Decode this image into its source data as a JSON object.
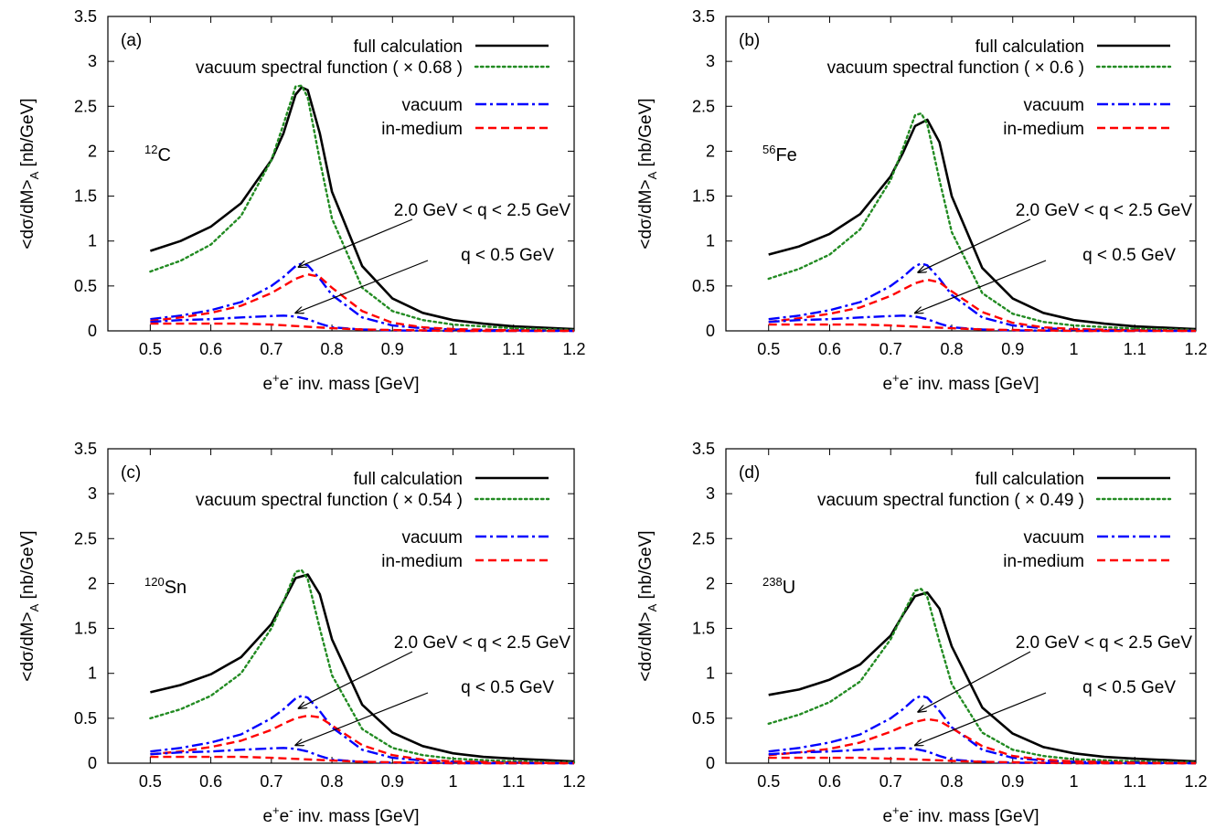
{
  "colors": {
    "full": "#000000",
    "vacuum_spectral": "#228b22",
    "vacuum": "#0000ff",
    "in_medium": "#ff0000",
    "axis": "#000000"
  },
  "common": {
    "xlabel_base": "e",
    "xlabel_plus": "+",
    "xlabel_mid": "e",
    "xlabel_minus": "-",
    "xlabel_tail": " inv. mass [GeV]",
    "ylabel_main": "<dσ/dM>",
    "ylabel_sub": "A",
    "ylabel_tail": " [nb/GeV]",
    "legend_full": "full calculation",
    "legend_vacuum": "vacuum",
    "legend_in_medium": "in-medium",
    "annotation_high_q": "2.0 GeV < q < 2.5 GeV",
    "annotation_low_q": "q < 0.5 GeV",
    "xticks": [
      "0.5",
      "0.6",
      "0.7",
      "0.8",
      "0.9",
      "1",
      "1.1",
      "1.2"
    ],
    "yticks": [
      "0",
      "0.5",
      "1",
      "1.5",
      "2",
      "2.5",
      "3",
      "3.5"
    ]
  },
  "chart_data": [
    {
      "type": "line",
      "panel": "(a)",
      "nucleus_mass": "12",
      "nucleus_symbol": "C",
      "legend_vacuum_spectral": "vacuum spectral function ( × 0.68 )",
      "xlim": [
        0.43,
        1.2
      ],
      "ylim": [
        0,
        3.5
      ],
      "series": [
        {
          "name": "full calculation",
          "style": "solid",
          "x": [
            0.5,
            0.55,
            0.6,
            0.65,
            0.7,
            0.72,
            0.74,
            0.75,
            0.76,
            0.78,
            0.8,
            0.85,
            0.9,
            0.95,
            1.0,
            1.05,
            1.1,
            1.2
          ],
          "y": [
            0.89,
            1.0,
            1.16,
            1.42,
            1.9,
            2.2,
            2.63,
            2.71,
            2.68,
            2.2,
            1.55,
            0.72,
            0.36,
            0.2,
            0.12,
            0.08,
            0.05,
            0.02
          ]
        },
        {
          "name": "vacuum spectral function ( × 0.68 )",
          "style": "dotted",
          "x": [
            0.5,
            0.55,
            0.6,
            0.65,
            0.7,
            0.72,
            0.74,
            0.75,
            0.76,
            0.78,
            0.8,
            0.85,
            0.9,
            0.95,
            1.0,
            1.1,
            1.2
          ],
          "y": [
            0.66,
            0.78,
            0.96,
            1.28,
            1.9,
            2.3,
            2.72,
            2.73,
            2.6,
            1.9,
            1.25,
            0.48,
            0.22,
            0.12,
            0.07,
            0.03,
            0.01
          ]
        },
        {
          "name": "vacuum",
          "style": "dashdot",
          "group": "2.0 GeV < q < 2.5 GeV",
          "x": [
            0.5,
            0.55,
            0.6,
            0.65,
            0.7,
            0.72,
            0.74,
            0.75,
            0.76,
            0.78,
            0.8,
            0.85,
            0.9,
            0.95,
            1.0,
            1.1,
            1.2
          ],
          "y": [
            0.13,
            0.17,
            0.23,
            0.32,
            0.5,
            0.6,
            0.72,
            0.75,
            0.73,
            0.58,
            0.4,
            0.15,
            0.06,
            0.03,
            0.015,
            0.005,
            0.0
          ]
        },
        {
          "name": "in-medium",
          "style": "dashed",
          "group": "2.0 GeV < q < 2.5 GeV",
          "x": [
            0.5,
            0.55,
            0.6,
            0.65,
            0.7,
            0.72,
            0.74,
            0.76,
            0.78,
            0.8,
            0.85,
            0.9,
            0.95,
            1.0,
            1.1,
            1.2
          ],
          "y": [
            0.11,
            0.15,
            0.2,
            0.28,
            0.42,
            0.5,
            0.58,
            0.63,
            0.6,
            0.48,
            0.22,
            0.09,
            0.04,
            0.02,
            0.006,
            0.0
          ]
        },
        {
          "name": "vacuum",
          "style": "dashdot",
          "group": "q < 0.5 GeV",
          "x": [
            0.5,
            0.55,
            0.6,
            0.65,
            0.7,
            0.72,
            0.74,
            0.76,
            0.78,
            0.8,
            0.85,
            0.9,
            1.0,
            1.2
          ],
          "y": [
            0.1,
            0.12,
            0.13,
            0.15,
            0.165,
            0.17,
            0.16,
            0.13,
            0.08,
            0.04,
            0.015,
            0.005,
            0.0,
            0.0
          ]
        },
        {
          "name": "in-medium",
          "style": "dashed",
          "group": "q < 0.5 GeV",
          "x": [
            0.5,
            0.55,
            0.6,
            0.65,
            0.7,
            0.75,
            0.8,
            0.85,
            0.9,
            0.95,
            1.0,
            1.1,
            1.2
          ],
          "y": [
            0.08,
            0.08,
            0.08,
            0.08,
            0.07,
            0.05,
            0.03,
            0.015,
            0.01,
            0.005,
            0.0,
            0.0,
            0.0
          ]
        }
      ]
    },
    {
      "type": "line",
      "panel": "(b)",
      "nucleus_mass": "56",
      "nucleus_symbol": "Fe",
      "legend_vacuum_spectral": "vacuum spectral function ( × 0.6 )",
      "xlim": [
        0.43,
        1.2
      ],
      "ylim": [
        0,
        3.5
      ],
      "series": [
        {
          "name": "full calculation",
          "style": "solid",
          "x": [
            0.5,
            0.55,
            0.6,
            0.65,
            0.7,
            0.72,
            0.74,
            0.76,
            0.78,
            0.8,
            0.85,
            0.9,
            0.95,
            1.0,
            1.05,
            1.1,
            1.2
          ],
          "y": [
            0.85,
            0.94,
            1.08,
            1.3,
            1.72,
            1.98,
            2.28,
            2.35,
            2.1,
            1.5,
            0.7,
            0.36,
            0.2,
            0.12,
            0.08,
            0.05,
            0.02
          ]
        },
        {
          "name": "vacuum spectral function ( × 0.6 )",
          "style": "dotted",
          "x": [
            0.5,
            0.55,
            0.6,
            0.65,
            0.7,
            0.72,
            0.74,
            0.75,
            0.76,
            0.78,
            0.8,
            0.85,
            0.9,
            0.95,
            1.0,
            1.1,
            1.2
          ],
          "y": [
            0.58,
            0.69,
            0.85,
            1.13,
            1.68,
            2.03,
            2.4,
            2.42,
            2.3,
            1.68,
            1.1,
            0.42,
            0.19,
            0.1,
            0.06,
            0.025,
            0.01
          ]
        },
        {
          "name": "vacuum",
          "style": "dashdot",
          "group": "2.0 GeV < q < 2.5 GeV",
          "x": [
            0.5,
            0.55,
            0.6,
            0.65,
            0.7,
            0.72,
            0.74,
            0.75,
            0.76,
            0.78,
            0.8,
            0.85,
            0.9,
            0.95,
            1.0,
            1.1,
            1.2
          ],
          "y": [
            0.13,
            0.17,
            0.23,
            0.32,
            0.5,
            0.6,
            0.72,
            0.75,
            0.73,
            0.58,
            0.4,
            0.15,
            0.06,
            0.03,
            0.015,
            0.005,
            0.0
          ]
        },
        {
          "name": "in-medium",
          "style": "dashed",
          "group": "2.0 GeV < q < 2.5 GeV",
          "x": [
            0.5,
            0.55,
            0.6,
            0.65,
            0.7,
            0.72,
            0.74,
            0.76,
            0.78,
            0.8,
            0.85,
            0.9,
            0.95,
            1.0,
            1.1,
            1.2
          ],
          "y": [
            0.1,
            0.14,
            0.19,
            0.26,
            0.39,
            0.46,
            0.53,
            0.57,
            0.54,
            0.44,
            0.21,
            0.09,
            0.04,
            0.02,
            0.006,
            0.0
          ]
        },
        {
          "name": "vacuum",
          "style": "dashdot",
          "group": "q < 0.5 GeV",
          "x": [
            0.5,
            0.55,
            0.6,
            0.65,
            0.7,
            0.72,
            0.74,
            0.76,
            0.78,
            0.8,
            0.85,
            0.9,
            1.0,
            1.2
          ],
          "y": [
            0.1,
            0.12,
            0.13,
            0.15,
            0.165,
            0.17,
            0.16,
            0.13,
            0.08,
            0.04,
            0.015,
            0.005,
            0.0,
            0.0
          ]
        },
        {
          "name": "in-medium",
          "style": "dashed",
          "group": "q < 0.5 GeV",
          "x": [
            0.5,
            0.55,
            0.6,
            0.65,
            0.7,
            0.75,
            0.8,
            0.85,
            0.9,
            0.95,
            1.0,
            1.1,
            1.2
          ],
          "y": [
            0.07,
            0.07,
            0.07,
            0.07,
            0.06,
            0.045,
            0.03,
            0.015,
            0.01,
            0.005,
            0.0,
            0.0,
            0.0
          ]
        }
      ]
    },
    {
      "type": "line",
      "panel": "(c)",
      "nucleus_mass": "120",
      "nucleus_symbol": "Sn",
      "legend_vacuum_spectral": "vacuum spectral function ( × 0.54 )",
      "xlim": [
        0.43,
        1.2
      ],
      "ylim": [
        0,
        3.5
      ],
      "series": [
        {
          "name": "full calculation",
          "style": "solid",
          "x": [
            0.5,
            0.55,
            0.6,
            0.65,
            0.7,
            0.72,
            0.74,
            0.76,
            0.78,
            0.8,
            0.85,
            0.9,
            0.95,
            1.0,
            1.05,
            1.1,
            1.2
          ],
          "y": [
            0.79,
            0.87,
            0.99,
            1.18,
            1.55,
            1.8,
            2.06,
            2.1,
            1.88,
            1.38,
            0.65,
            0.34,
            0.19,
            0.11,
            0.07,
            0.05,
            0.02
          ]
        },
        {
          "name": "vacuum spectral function ( × 0.54 )",
          "style": "dotted",
          "x": [
            0.5,
            0.55,
            0.6,
            0.65,
            0.7,
            0.72,
            0.74,
            0.75,
            0.76,
            0.78,
            0.8,
            0.85,
            0.9,
            0.95,
            1.0,
            1.1,
            1.2
          ],
          "y": [
            0.5,
            0.6,
            0.75,
            1.0,
            1.5,
            1.8,
            2.13,
            2.15,
            2.05,
            1.5,
            0.98,
            0.38,
            0.17,
            0.09,
            0.05,
            0.02,
            0.01
          ]
        },
        {
          "name": "vacuum",
          "style": "dashdot",
          "group": "2.0 GeV < q < 2.5 GeV",
          "x": [
            0.5,
            0.55,
            0.6,
            0.65,
            0.7,
            0.72,
            0.74,
            0.75,
            0.76,
            0.78,
            0.8,
            0.85,
            0.9,
            0.95,
            1.0,
            1.1,
            1.2
          ],
          "y": [
            0.13,
            0.17,
            0.23,
            0.32,
            0.5,
            0.6,
            0.72,
            0.75,
            0.73,
            0.58,
            0.4,
            0.15,
            0.06,
            0.03,
            0.015,
            0.005,
            0.0
          ]
        },
        {
          "name": "in-medium",
          "style": "dashed",
          "group": "2.0 GeV < q < 2.5 GeV",
          "x": [
            0.5,
            0.55,
            0.6,
            0.65,
            0.7,
            0.72,
            0.74,
            0.76,
            0.78,
            0.8,
            0.85,
            0.9,
            0.95,
            1.0,
            1.1,
            1.2
          ],
          "y": [
            0.1,
            0.13,
            0.18,
            0.25,
            0.37,
            0.44,
            0.5,
            0.53,
            0.51,
            0.42,
            0.2,
            0.09,
            0.04,
            0.02,
            0.006,
            0.0
          ]
        },
        {
          "name": "vacuum",
          "style": "dashdot",
          "group": "q < 0.5 GeV",
          "x": [
            0.5,
            0.55,
            0.6,
            0.65,
            0.7,
            0.72,
            0.74,
            0.76,
            0.78,
            0.8,
            0.85,
            0.9,
            1.0,
            1.2
          ],
          "y": [
            0.1,
            0.12,
            0.13,
            0.15,
            0.165,
            0.17,
            0.16,
            0.13,
            0.08,
            0.04,
            0.015,
            0.005,
            0.0,
            0.0
          ]
        },
        {
          "name": "in-medium",
          "style": "dashed",
          "group": "q < 0.5 GeV",
          "x": [
            0.5,
            0.55,
            0.6,
            0.65,
            0.7,
            0.75,
            0.8,
            0.85,
            0.9,
            0.95,
            1.0,
            1.1,
            1.2
          ],
          "y": [
            0.07,
            0.07,
            0.07,
            0.07,
            0.06,
            0.045,
            0.03,
            0.015,
            0.01,
            0.005,
            0.0,
            0.0,
            0.0
          ]
        }
      ]
    },
    {
      "type": "line",
      "panel": "(d)",
      "nucleus_mass": "238",
      "nucleus_symbol": "U",
      "legend_vacuum_spectral": "vacuum spectral function ( × 0.49 )",
      "xlim": [
        0.43,
        1.2
      ],
      "ylim": [
        0,
        3.5
      ],
      "series": [
        {
          "name": "full calculation",
          "style": "solid",
          "x": [
            0.5,
            0.55,
            0.6,
            0.65,
            0.7,
            0.72,
            0.74,
            0.76,
            0.78,
            0.8,
            0.85,
            0.9,
            0.95,
            1.0,
            1.05,
            1.1,
            1.2
          ],
          "y": [
            0.76,
            0.82,
            0.93,
            1.1,
            1.42,
            1.65,
            1.86,
            1.9,
            1.72,
            1.3,
            0.62,
            0.33,
            0.18,
            0.11,
            0.07,
            0.05,
            0.02
          ]
        },
        {
          "name": "vacuum spectral function ( × 0.49 )",
          "style": "dotted",
          "x": [
            0.5,
            0.55,
            0.6,
            0.65,
            0.7,
            0.72,
            0.74,
            0.75,
            0.76,
            0.78,
            0.8,
            0.85,
            0.9,
            0.95,
            1.0,
            1.1,
            1.2
          ],
          "y": [
            0.44,
            0.54,
            0.68,
            0.91,
            1.38,
            1.66,
            1.92,
            1.94,
            1.85,
            1.35,
            0.88,
            0.34,
            0.15,
            0.08,
            0.045,
            0.02,
            0.01
          ]
        },
        {
          "name": "vacuum",
          "style": "dashdot",
          "group": "2.0 GeV < q < 2.5 GeV",
          "x": [
            0.5,
            0.55,
            0.6,
            0.65,
            0.7,
            0.72,
            0.74,
            0.75,
            0.76,
            0.78,
            0.8,
            0.85,
            0.9,
            0.95,
            1.0,
            1.1,
            1.2
          ],
          "y": [
            0.13,
            0.17,
            0.23,
            0.32,
            0.5,
            0.6,
            0.72,
            0.75,
            0.73,
            0.58,
            0.4,
            0.15,
            0.06,
            0.03,
            0.015,
            0.005,
            0.0
          ]
        },
        {
          "name": "in-medium",
          "style": "dashed",
          "group": "2.0 GeV < q < 2.5 GeV",
          "x": [
            0.5,
            0.55,
            0.6,
            0.65,
            0.7,
            0.72,
            0.74,
            0.76,
            0.78,
            0.8,
            0.85,
            0.9,
            0.95,
            1.0,
            1.1,
            1.2
          ],
          "y": [
            0.09,
            0.12,
            0.16,
            0.23,
            0.35,
            0.41,
            0.46,
            0.49,
            0.47,
            0.39,
            0.19,
            0.08,
            0.04,
            0.02,
            0.006,
            0.0
          ]
        },
        {
          "name": "vacuum",
          "style": "dashdot",
          "group": "q < 0.5 GeV",
          "x": [
            0.5,
            0.55,
            0.6,
            0.65,
            0.7,
            0.72,
            0.74,
            0.76,
            0.78,
            0.8,
            0.85,
            0.9,
            1.0,
            1.2
          ],
          "y": [
            0.1,
            0.12,
            0.13,
            0.15,
            0.165,
            0.17,
            0.16,
            0.13,
            0.08,
            0.04,
            0.015,
            0.005,
            0.0,
            0.0
          ]
        },
        {
          "name": "in-medium",
          "style": "dashed",
          "group": "q < 0.5 GeV",
          "x": [
            0.5,
            0.55,
            0.6,
            0.65,
            0.7,
            0.75,
            0.8,
            0.85,
            0.9,
            0.95,
            1.0,
            1.1,
            1.2
          ],
          "y": [
            0.06,
            0.06,
            0.06,
            0.06,
            0.05,
            0.04,
            0.025,
            0.015,
            0.01,
            0.005,
            0.0,
            0.0,
            0.0
          ]
        }
      ]
    }
  ]
}
